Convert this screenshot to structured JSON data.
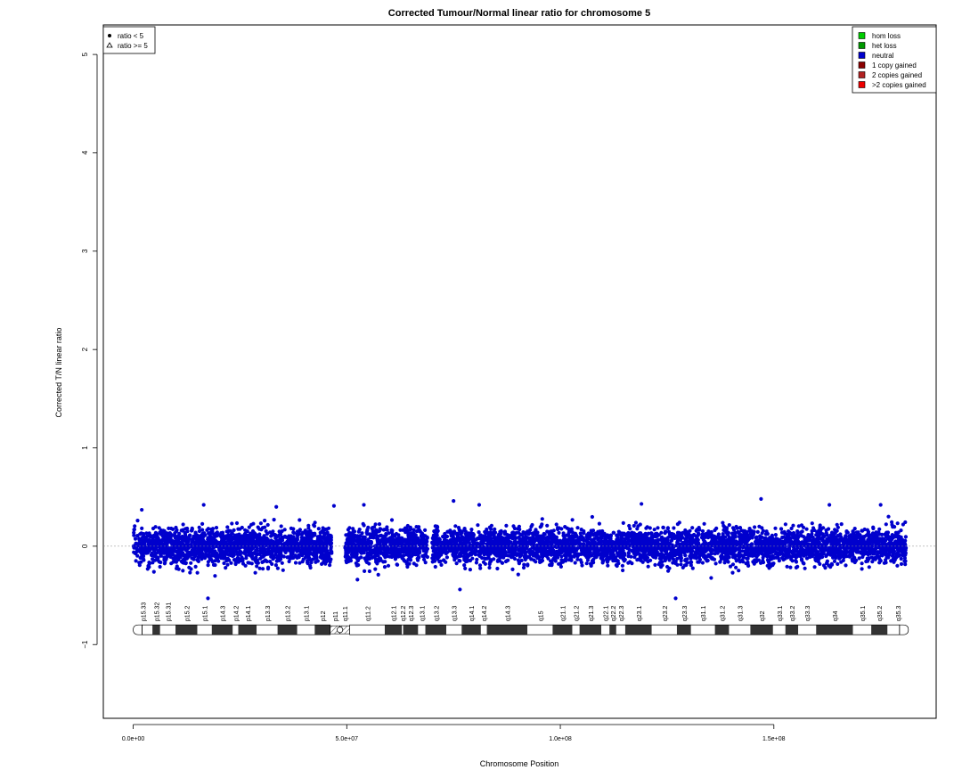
{
  "chart_data": {
    "type": "scatter",
    "title": "Corrected Tumour/Normal linear ratio for chromosome  5",
    "xlabel": "Chromosome Position",
    "ylabel": "Corrected T/N linear ratio",
    "xlim": [
      -7000000,
      188000000
    ],
    "ylim": [
      -1.75,
      5.3
    ],
    "x_ticks": [
      0,
      50000000,
      100000000,
      150000000
    ],
    "x_tick_labels": [
      "0.0e+00",
      "5.0e+07",
      "1.0e+08",
      "1.5e+08"
    ],
    "y_ticks": [
      -1,
      0,
      1,
      2,
      3,
      4,
      5
    ],
    "y_tick_labels": [
      "−1",
      "0",
      "1",
      "2",
      "3",
      "4",
      "5"
    ],
    "reference_line": 0,
    "point_color": "#0000CD",
    "segments": [
      {
        "start": 0,
        "end": 46500000,
        "center": 0.0,
        "spread": 0.09
      },
      {
        "start": 49500000,
        "end": 69000000,
        "center": 0.0,
        "spread": 0.09
      },
      {
        "start": 70000000,
        "end": 181000000,
        "center": 0.0,
        "spread": 0.09
      }
    ],
    "outliers": [
      {
        "x": 2000000,
        "y": 0.37
      },
      {
        "x": 16500000,
        "y": 0.42
      },
      {
        "x": 33500000,
        "y": 0.4
      },
      {
        "x": 47000000,
        "y": 0.41
      },
      {
        "x": 54000000,
        "y": 0.42
      },
      {
        "x": 75000000,
        "y": 0.46
      },
      {
        "x": 81000000,
        "y": 0.42
      },
      {
        "x": 119000000,
        "y": 0.43
      },
      {
        "x": 147000000,
        "y": 0.48
      },
      {
        "x": 163000000,
        "y": 0.42
      },
      {
        "x": 175000000,
        "y": 0.42
      },
      {
        "x": 76500000,
        "y": -0.44
      },
      {
        "x": 17500000,
        "y": -0.53
      },
      {
        "x": 127000000,
        "y": -0.53
      },
      {
        "x": 52500000,
        "y": -0.34
      }
    ],
    "legend_ratio": {
      "position": "top-left",
      "entries": [
        {
          "symbol": "circle",
          "label": "ratio < 5"
        },
        {
          "symbol": "triangle",
          "label": "ratio >= 5"
        }
      ]
    },
    "legend_status": {
      "position": "top-right",
      "entries": [
        {
          "label": "hom loss",
          "color": "#00CD00"
        },
        {
          "label": "het loss",
          "color": "#009900"
        },
        {
          "label": "neutral",
          "color": "#0000CD"
        },
        {
          "label": "1 copy gained",
          "color": "#8B0000"
        },
        {
          "label": "2 copies gained",
          "color": "#B22222"
        },
        {
          "label": ">2 copies gained",
          "color": "#EE0000"
        }
      ]
    },
    "ideogram": {
      "y": -0.85,
      "bands": [
        {
          "name": "p15.33",
          "start": 0,
          "end": 4500000,
          "stain": "white"
        },
        {
          "name": "p15.32",
          "start": 4500000,
          "end": 6300000,
          "stain": "dark"
        },
        {
          "name": "p15.31",
          "start": 6300000,
          "end": 9900000,
          "stain": "white"
        },
        {
          "name": "p15.2",
          "start": 9900000,
          "end": 15000000,
          "stain": "dark"
        },
        {
          "name": "p15.1",
          "start": 15000000,
          "end": 18400000,
          "stain": "white"
        },
        {
          "name": "p14.3",
          "start": 18400000,
          "end": 23300000,
          "stain": "dark"
        },
        {
          "name": "p14.2",
          "start": 23300000,
          "end": 24600000,
          "stain": "white"
        },
        {
          "name": "p14.1",
          "start": 24600000,
          "end": 28900000,
          "stain": "dark"
        },
        {
          "name": "p13.3",
          "start": 28900000,
          "end": 33800000,
          "stain": "white"
        },
        {
          "name": "p13.2",
          "start": 33800000,
          "end": 38400000,
          "stain": "dark"
        },
        {
          "name": "p13.1",
          "start": 38400000,
          "end": 42500000,
          "stain": "white"
        },
        {
          "name": "p12",
          "start": 42500000,
          "end": 46100000,
          "stain": "dark"
        },
        {
          "name": "p11",
          "start": 46100000,
          "end": 48400000,
          "stain": "hatched"
        },
        {
          "name": "q11.1",
          "start": 48400000,
          "end": 50700000,
          "stain": "hatched"
        },
        {
          "name": "q11.2",
          "start": 50700000,
          "end": 58900000,
          "stain": "white"
        },
        {
          "name": "q12.1",
          "start": 58900000,
          "end": 62900000,
          "stain": "dark"
        },
        {
          "name": "q12.2",
          "start": 62900000,
          "end": 63200000,
          "stain": "white"
        },
        {
          "name": "q12.3",
          "start": 63200000,
          "end": 66700000,
          "stain": "dark"
        },
        {
          "name": "q13.1",
          "start": 66700000,
          "end": 68400000,
          "stain": "white"
        },
        {
          "name": "q13.2",
          "start": 68400000,
          "end": 73300000,
          "stain": "dark"
        },
        {
          "name": "q13.3",
          "start": 73300000,
          "end": 76900000,
          "stain": "white"
        },
        {
          "name": "q14.1",
          "start": 76900000,
          "end": 81400000,
          "stain": "dark"
        },
        {
          "name": "q14.2",
          "start": 81400000,
          "end": 82800000,
          "stain": "white"
        },
        {
          "name": "q14.3",
          "start": 82800000,
          "end": 92300000,
          "stain": "dark"
        },
        {
          "name": "q15",
          "start": 92300000,
          "end": 98200000,
          "stain": "white"
        },
        {
          "name": "q21.1",
          "start": 98200000,
          "end": 102800000,
          "stain": "dark"
        },
        {
          "name": "q21.2",
          "start": 102800000,
          "end": 104500000,
          "stain": "white"
        },
        {
          "name": "q21.3",
          "start": 104500000,
          "end": 109600000,
          "stain": "dark"
        },
        {
          "name": "q22.1",
          "start": 109600000,
          "end": 111500000,
          "stain": "white"
        },
        {
          "name": "q22.2",
          "start": 111500000,
          "end": 113100000,
          "stain": "dark"
        },
        {
          "name": "q22.3",
          "start": 113100000,
          "end": 115200000,
          "stain": "white"
        },
        {
          "name": "q23.1",
          "start": 115200000,
          "end": 121400000,
          "stain": "dark"
        },
        {
          "name": "q23.2",
          "start": 121400000,
          "end": 127300000,
          "stain": "white"
        },
        {
          "name": "q23.3",
          "start": 127300000,
          "end": 130600000,
          "stain": "dark"
        },
        {
          "name": "q31.1",
          "start": 130600000,
          "end": 136200000,
          "stain": "white"
        },
        {
          "name": "q31.2",
          "start": 136200000,
          "end": 139500000,
          "stain": "dark"
        },
        {
          "name": "q31.3",
          "start": 139500000,
          "end": 144500000,
          "stain": "white"
        },
        {
          "name": "q32",
          "start": 144500000,
          "end": 149800000,
          "stain": "dark"
        },
        {
          "name": "q33.1",
          "start": 149800000,
          "end": 152700000,
          "stain": "white"
        },
        {
          "name": "q33.2",
          "start": 152700000,
          "end": 155700000,
          "stain": "dark"
        },
        {
          "name": "q33.3",
          "start": 155700000,
          "end": 159900000,
          "stain": "white"
        },
        {
          "name": "q34",
          "start": 159900000,
          "end": 168500000,
          "stain": "dark"
        },
        {
          "name": "q35.1",
          "start": 168500000,
          "end": 172800000,
          "stain": "white"
        },
        {
          "name": "q35.2",
          "start": 172800000,
          "end": 176600000,
          "stain": "dark"
        },
        {
          "name": "q35.3",
          "start": 176600000,
          "end": 181500000,
          "stain": "white"
        }
      ]
    }
  }
}
